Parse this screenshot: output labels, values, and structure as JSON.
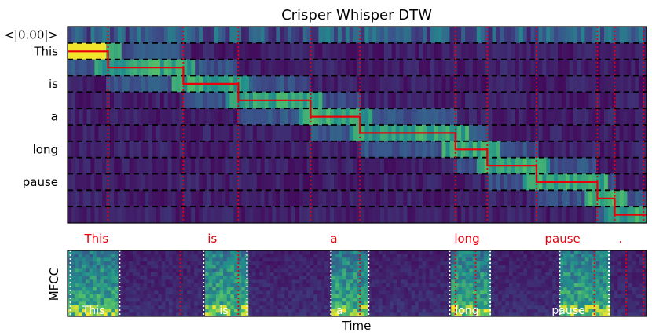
{
  "chart_data": [
    {
      "type": "heatmap",
      "title": "Crisper Whisper DTW",
      "y_tokens": [
        "<|0.00|>",
        "This",
        "",
        "is",
        "",
        "a",
        "",
        "long",
        "",
        "pause",
        "",
        ""
      ],
      "path_steps": [
        {
          "row": 1,
          "from": 0.0,
          "to": 0.07
        },
        {
          "row": 2,
          "from": 0.07,
          "to": 0.2
        },
        {
          "row": 3,
          "from": 0.2,
          "to": 0.295
        },
        {
          "row": 4,
          "from": 0.295,
          "to": 0.42
        },
        {
          "row": 5,
          "from": 0.42,
          "to": 0.505
        },
        {
          "row": 6,
          "from": 0.505,
          "to": 0.67
        },
        {
          "row": 7,
          "from": 0.67,
          "to": 0.725
        },
        {
          "row": 8,
          "from": 0.725,
          "to": 0.81
        },
        {
          "row": 9,
          "from": 0.81,
          "to": 0.915
        },
        {
          "row": 10,
          "from": 0.915,
          "to": 0.945
        },
        {
          "row": 11,
          "from": 0.945,
          "to": 1.0
        }
      ],
      "word_labels": [
        {
          "text": "This",
          "t": 0.05
        },
        {
          "text": "is",
          "t": 0.25
        },
        {
          "text": "a",
          "t": 0.46
        },
        {
          "text": "long",
          "t": 0.69
        },
        {
          "text": "pause",
          "t": 0.855
        },
        {
          "text": ".",
          "t": 0.955
        }
      ],
      "red_boundaries": [
        0.07,
        0.2,
        0.295,
        0.42,
        0.505,
        0.67,
        0.725,
        0.81,
        0.915,
        0.945,
        0.995
      ]
    },
    {
      "type": "heatmap",
      "ylabel": "MFCC",
      "xlabel": "Time",
      "word_labels": [
        {
          "text": "This",
          "t": 0.045
        },
        {
          "text": "is",
          "t": 0.27
        },
        {
          "text": "a",
          "t": 0.47
        },
        {
          "text": "long",
          "t": 0.69
        },
        {
          "text": "pause",
          "t": 0.865
        }
      ],
      "white_boundaries": [
        0.005,
        0.09,
        0.235,
        0.31,
        0.455,
        0.52,
        0.66,
        0.73,
        0.85,
        0.935
      ],
      "red_boundaries": [
        0.195,
        0.295,
        0.505,
        0.67,
        0.705,
        0.91,
        0.965,
        0.995
      ],
      "colormap": [
        "#440154",
        "#3b528b",
        "#21918c",
        "#5ec962",
        "#fde725"
      ]
    }
  ]
}
